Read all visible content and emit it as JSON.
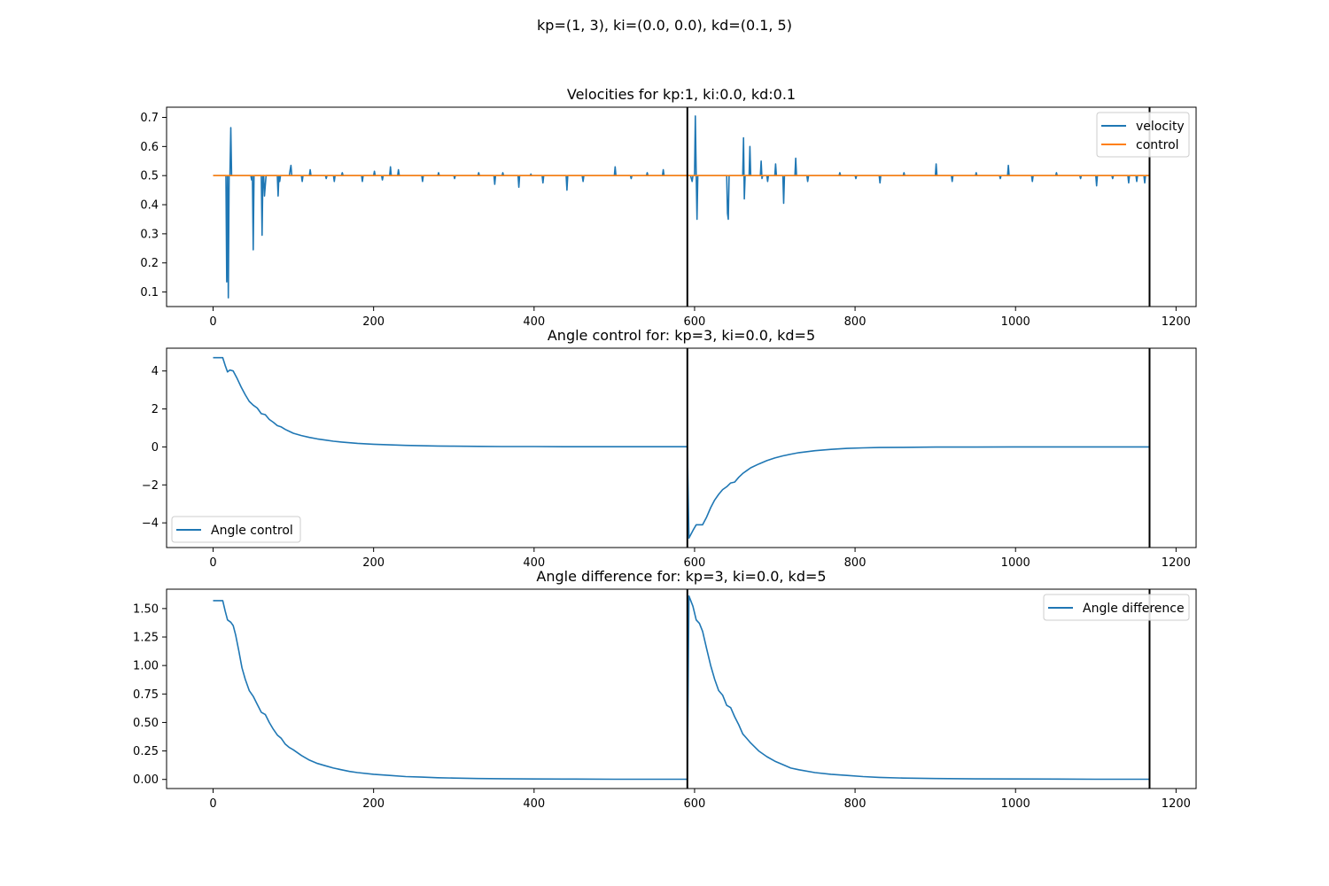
{
  "figure": {
    "suptitle": "kp=(1, 3), ki=(0.0, 0.0), kd=(0.1, 5)"
  },
  "chart_data": [
    {
      "type": "line",
      "title": "Velocities for kp:1, ki:0.0, kd:0.1",
      "xlim": [
        -58,
        1225
      ],
      "ylim": [
        0.05,
        0.735
      ],
      "xticks": [
        0,
        200,
        400,
        600,
        800,
        1000,
        1200
      ],
      "yticks": [
        0.1,
        0.2,
        0.3,
        0.4,
        0.5,
        0.6,
        0.7
      ],
      "ytick_labels": [
        "0.1",
        "0.2",
        "0.3",
        "0.4",
        "0.5",
        "0.6",
        "0.7"
      ],
      "legend": {
        "placement": "top-right"
      },
      "vlines": [
        591,
        1167
      ],
      "series": [
        {
          "name": "velocity",
          "color": "#1f77b4",
          "x": [
            0,
            16,
            17,
            18,
            19,
            20,
            21,
            22,
            23,
            24,
            47,
            48,
            49,
            50,
            51,
            52,
            60,
            61,
            62,
            63,
            64,
            66,
            80,
            81,
            82,
            83,
            84,
            85,
            95,
            96,
            97,
            98,
            99,
            110,
            111,
            112,
            120,
            121,
            122,
            140,
            141,
            142,
            150,
            151,
            152,
            160,
            161,
            162,
            185,
            186,
            187,
            200,
            201,
            202,
            210,
            211,
            212,
            220,
            221,
            222,
            230,
            231,
            232,
            260,
            261,
            262,
            280,
            281,
            282,
            300,
            301,
            302,
            330,
            331,
            332,
            350,
            351,
            352,
            360,
            361,
            362,
            380,
            381,
            382,
            395,
            396,
            397,
            410,
            411,
            412,
            440,
            441,
            442,
            460,
            461,
            462,
            500,
            501,
            502,
            520,
            521,
            522,
            540,
            541,
            542,
            560,
            561,
            562,
            590,
            595,
            597,
            598,
            599,
            600,
            601,
            602,
            603,
            604,
            605,
            640,
            641,
            642,
            643,
            644,
            645,
            660,
            661,
            662,
            663,
            664,
            668,
            669,
            670,
            671,
            682,
            683,
            684,
            685,
            690,
            691,
            692,
            700,
            701,
            702,
            703,
            710,
            711,
            712,
            713,
            725,
            726,
            727,
            728,
            740,
            741,
            742,
            780,
            781,
            782,
            800,
            801,
            802,
            830,
            831,
            832,
            860,
            861,
            862,
            900,
            901,
            902,
            920,
            921,
            922,
            950,
            951,
            952,
            980,
            981,
            982,
            990,
            991,
            992,
            1020,
            1021,
            1022,
            1050,
            1051,
            1052,
            1080,
            1081,
            1082,
            1100,
            1101,
            1102,
            1120,
            1121,
            1122,
            1140,
            1141,
            1142,
            1150,
            1151,
            1152,
            1160,
            1161,
            1162,
            1167
          ],
          "y": [
            0.5,
            0.5,
            0.135,
            0.5,
            0.08,
            0.5,
            0.5,
            0.665,
            0.5,
            0.5,
            0.5,
            0.485,
            0.5,
            0.245,
            0.5,
            0.5,
            0.5,
            0.295,
            0.5,
            0.5,
            0.43,
            0.5,
            0.5,
            0.43,
            0.5,
            0.48,
            0.5,
            0.5,
            0.5,
            0.52,
            0.535,
            0.5,
            0.5,
            0.5,
            0.48,
            0.5,
            0.5,
            0.52,
            0.5,
            0.5,
            0.49,
            0.5,
            0.5,
            0.48,
            0.5,
            0.5,
            0.51,
            0.5,
            0.5,
            0.48,
            0.5,
            0.5,
            0.515,
            0.5,
            0.5,
            0.485,
            0.5,
            0.5,
            0.53,
            0.5,
            0.5,
            0.52,
            0.5,
            0.5,
            0.48,
            0.5,
            0.5,
            0.51,
            0.5,
            0.5,
            0.49,
            0.5,
            0.5,
            0.51,
            0.5,
            0.5,
            0.47,
            0.5,
            0.5,
            0.51,
            0.5,
            0.5,
            0.46,
            0.5,
            0.5,
            0.505,
            0.5,
            0.5,
            0.475,
            0.5,
            0.5,
            0.45,
            0.5,
            0.5,
            0.48,
            0.5,
            0.5,
            0.53,
            0.5,
            0.5,
            0.49,
            0.5,
            0.5,
            0.51,
            0.5,
            0.5,
            0.52,
            0.5,
            0.5,
            0.5,
            0.48,
            0.5,
            0.5,
            0.5,
            0.705,
            0.5,
            0.35,
            0.5,
            0.5,
            0.5,
            0.37,
            0.35,
            0.5,
            0.5,
            0.5,
            0.5,
            0.63,
            0.42,
            0.5,
            0.5,
            0.5,
            0.6,
            0.5,
            0.5,
            0.5,
            0.55,
            0.49,
            0.5,
            0.5,
            0.48,
            0.5,
            0.5,
            0.54,
            0.5,
            0.5,
            0.5,
            0.405,
            0.5,
            0.5,
            0.5,
            0.56,
            0.5,
            0.5,
            0.5,
            0.48,
            0.5,
            0.5,
            0.51,
            0.5,
            0.5,
            0.49,
            0.5,
            0.5,
            0.475,
            0.5,
            0.5,
            0.51,
            0.5,
            0.5,
            0.54,
            0.5,
            0.5,
            0.48,
            0.5,
            0.5,
            0.51,
            0.5,
            0.5,
            0.49,
            0.5,
            0.5,
            0.535,
            0.5,
            0.5,
            0.48,
            0.5,
            0.5,
            0.51,
            0.5,
            0.5,
            0.49,
            0.5,
            0.5,
            0.465,
            0.5,
            0.5,
            0.49,
            0.5,
            0.5,
            0.475,
            0.5,
            0.5,
            0.48,
            0.5,
            0.5,
            0.475,
            0.5,
            0.5
          ]
        },
        {
          "name": "control",
          "color": "#ff7f0e",
          "x": [
            0,
            1167
          ],
          "y": [
            0.5,
            0.5
          ]
        }
      ]
    },
    {
      "type": "line",
      "title": "Angle control for: kp=3, ki=0.0, kd=5",
      "xlim": [
        -58,
        1225
      ],
      "ylim": [
        -5.3,
        5.2
      ],
      "xticks": [
        0,
        200,
        400,
        600,
        800,
        1000,
        1200
      ],
      "yticks": [
        -4,
        -2,
        0,
        2,
        4
      ],
      "ytick_labels": [
        "−4",
        "−2",
        "0",
        "2",
        "4"
      ],
      "legend": {
        "placement": "lower-left"
      },
      "vlines": [
        591,
        1167
      ],
      "series": [
        {
          "name": "Angle control",
          "color": "#1f77b4",
          "x": [
            0,
            12,
            15,
            18,
            21,
            25,
            30,
            35,
            40,
            45,
            50,
            55,
            60,
            65,
            70,
            75,
            80,
            85,
            90,
            95,
            100,
            110,
            120,
            130,
            140,
            150,
            160,
            180,
            200,
            220,
            240,
            260,
            280,
            300,
            330,
            360,
            400,
            450,
            500,
            550,
            590,
            591,
            593,
            598,
            602,
            606,
            610,
            615,
            620,
            625,
            630,
            635,
            640,
            645,
            650,
            655,
            660,
            665,
            670,
            680,
            690,
            700,
            710,
            720,
            730,
            750,
            770,
            790,
            810,
            830,
            860,
            900,
            950,
            1000,
            1050,
            1100,
            1167
          ],
          "y": [
            4.7,
            4.7,
            4.3,
            3.95,
            4.05,
            4.0,
            3.6,
            3.15,
            2.75,
            2.4,
            2.2,
            2.05,
            1.75,
            1.7,
            1.45,
            1.3,
            1.12,
            1.05,
            0.92,
            0.82,
            0.72,
            0.6,
            0.5,
            0.42,
            0.36,
            0.3,
            0.26,
            0.19,
            0.14,
            0.11,
            0.08,
            0.06,
            0.05,
            0.04,
            0.03,
            0.02,
            0.02,
            0.01,
            0.01,
            0.01,
            0.01,
            0,
            -4.8,
            -4.4,
            -4.1,
            -4.1,
            -4.1,
            -3.7,
            -3.2,
            -2.8,
            -2.5,
            -2.25,
            -2.1,
            -1.9,
            -1.85,
            -1.6,
            -1.4,
            -1.25,
            -1.1,
            -0.9,
            -0.72,
            -0.58,
            -0.47,
            -0.38,
            -0.3,
            -0.2,
            -0.13,
            -0.08,
            -0.05,
            -0.03,
            -0.02,
            -0.01,
            -0.01,
            0,
            0,
            0,
            0
          ]
        }
      ]
    },
    {
      "type": "line",
      "title": "Angle difference for: kp=3, ki=0.0, kd=5",
      "xlim": [
        -58,
        1225
      ],
      "ylim": [
        -0.08,
        1.67
      ],
      "xticks": [
        0,
        200,
        400,
        600,
        800,
        1000,
        1200
      ],
      "yticks": [
        0,
        0.25,
        0.5,
        0.75,
        1.0,
        1.25,
        1.5
      ],
      "ytick_labels": [
        "0.00",
        "0.25",
        "0.50",
        "0.75",
        "1.00",
        "1.25",
        "1.50"
      ],
      "legend": {
        "placement": "top-right"
      },
      "vlines": [
        591,
        1167
      ],
      "series": [
        {
          "name": "Angle difference",
          "color": "#1f77b4",
          "x": [
            0,
            12,
            15,
            18,
            22,
            25,
            28,
            32,
            36,
            40,
            45,
            50,
            55,
            60,
            65,
            70,
            75,
            80,
            85,
            90,
            95,
            100,
            110,
            120,
            130,
            140,
            150,
            160,
            170,
            180,
            200,
            220,
            240,
            260,
            280,
            300,
            330,
            360,
            400,
            450,
            500,
            550,
            590,
            591,
            593,
            598,
            602,
            606,
            610,
            615,
            620,
            625,
            630,
            635,
            640,
            645,
            650,
            655,
            660,
            665,
            670,
            680,
            690,
            700,
            710,
            720,
            730,
            750,
            770,
            790,
            810,
            830,
            860,
            900,
            950,
            1000,
            1050,
            1100,
            1167
          ],
          "y": [
            1.57,
            1.57,
            1.48,
            1.4,
            1.38,
            1.35,
            1.27,
            1.13,
            0.98,
            0.88,
            0.78,
            0.73,
            0.66,
            0.59,
            0.57,
            0.5,
            0.44,
            0.39,
            0.36,
            0.31,
            0.28,
            0.26,
            0.21,
            0.17,
            0.14,
            0.12,
            0.1,
            0.085,
            0.07,
            0.06,
            0.045,
            0.035,
            0.025,
            0.02,
            0.015,
            0.012,
            0.008,
            0.006,
            0.004,
            0.003,
            0.002,
            0.002,
            0.002,
            0.002,
            1.61,
            1.52,
            1.4,
            1.37,
            1.3,
            1.15,
            1.0,
            0.88,
            0.78,
            0.74,
            0.65,
            0.63,
            0.55,
            0.48,
            0.4,
            0.36,
            0.32,
            0.25,
            0.2,
            0.16,
            0.13,
            0.1,
            0.085,
            0.06,
            0.045,
            0.035,
            0.025,
            0.018,
            0.012,
            0.008,
            0.005,
            0.004,
            0.003,
            0.002,
            0.002
          ]
        }
      ]
    }
  ]
}
